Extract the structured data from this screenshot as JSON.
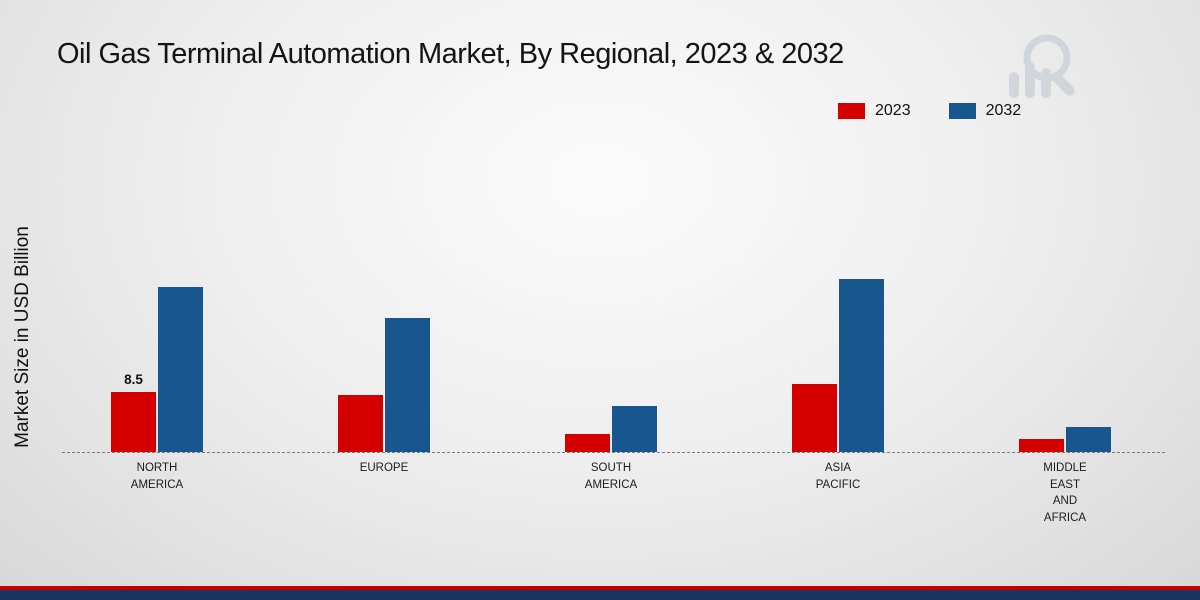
{
  "title": "Oil Gas Terminal Automation Market, By Regional, 2023 & 2032",
  "ylabel": "Market Size in USD Billion",
  "legend": [
    {
      "label": "2023",
      "color": "#d40000"
    },
    {
      "label": "2032",
      "color": "#17568f"
    }
  ],
  "footer": {
    "red": "#c40000",
    "navy": "#1b3563"
  },
  "chart_data": {
    "type": "bar",
    "title": "Oil Gas Terminal Automation Market, By Regional, 2023 & 2032",
    "xlabel": "",
    "ylabel": "Market Size in USD Billion",
    "categories": [
      "NORTH AMERICA",
      "EUROPE",
      "SOUTH AMERICA",
      "ASIA PACIFIC",
      "MIDDLE EAST AND AFRICA"
    ],
    "category_lines": [
      [
        "NORTH",
        "AMERICA"
      ],
      [
        "EUROPE"
      ],
      [
        "SOUTH",
        "AMERICA"
      ],
      [
        "ASIA",
        "PACIFIC"
      ],
      [
        "MIDDLE",
        "EAST",
        "AND",
        "AFRICA"
      ]
    ],
    "series": [
      {
        "name": "2023",
        "color": "#d40000",
        "values": [
          8.5,
          8.2,
          2.5,
          9.7,
          1.8
        ]
      },
      {
        "name": "2032",
        "color": "#17568f",
        "values": [
          23.5,
          19.2,
          6.5,
          24.7,
          3.6
        ]
      }
    ],
    "annotations": [
      {
        "text": "8.5",
        "category_index": 0,
        "series_index": 0
      }
    ],
    "ylim": [
      0,
      28
    ],
    "grid": false,
    "baseline_style": "dashed",
    "legend_position": "top-right"
  }
}
